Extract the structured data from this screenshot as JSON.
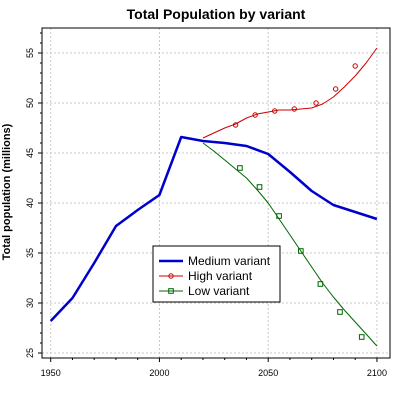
{
  "chart_data": {
    "type": "line",
    "title": "Total Population by variant",
    "xlabel": "",
    "ylabel": "Total population (millions)",
    "xlim": [
      1946,
      2106
    ],
    "ylim": [
      24.5,
      57.5
    ],
    "xticks": [
      1950,
      2000,
      2050,
      2100
    ],
    "yticks": [
      25,
      30,
      35,
      40,
      45,
      50,
      55
    ],
    "grid": true,
    "legend_position": "bottom-center",
    "series": [
      {
        "name": "Medium variant",
        "color": "#0000cc",
        "marker": "none",
        "x": [
          1950,
          1960,
          1970,
          1980,
          1990,
          2000,
          2010,
          2020,
          2030,
          2040,
          2050,
          2060,
          2070,
          2080,
          2090,
          2100
        ],
        "y": [
          28.2,
          30.5,
          34.0,
          37.7,
          39.3,
          40.8,
          46.6,
          46.2,
          46.0,
          45.7,
          44.9,
          43.1,
          41.2,
          39.8,
          39.1,
          38.4
        ]
      },
      {
        "name": "High variant",
        "color": "#cc0000",
        "marker": "circle",
        "x": [
          2020,
          2025,
          2030,
          2035,
          2040,
          2045,
          2050,
          2055,
          2060,
          2065,
          2070,
          2075,
          2080,
          2085,
          2090,
          2095,
          2100
        ],
        "y": [
          46.5,
          47.0,
          47.5,
          47.9,
          48.5,
          48.9,
          49.1,
          49.3,
          49.3,
          49.4,
          49.5,
          49.9,
          50.6,
          51.6,
          52.7,
          54.0,
          55.5
        ],
        "markers_x": [
          2035,
          2044,
          2053,
          2062,
          2072,
          2081,
          2090
        ],
        "markers_y": [
          47.8,
          48.8,
          49.2,
          49.4,
          50.0,
          51.4,
          53.7
        ]
      },
      {
        "name": "Low variant",
        "color": "#006600",
        "marker": "square",
        "x": [
          2020,
          2025,
          2030,
          2035,
          2040,
          2045,
          2050,
          2055,
          2060,
          2065,
          2070,
          2075,
          2080,
          2085,
          2090,
          2095,
          2100
        ],
        "y": [
          46.0,
          45.2,
          44.3,
          43.4,
          42.5,
          41.3,
          40.0,
          38.4,
          36.8,
          35.2,
          33.6,
          32.0,
          30.6,
          29.3,
          28.1,
          26.9,
          25.7
        ],
        "markers_x": [
          2037,
          2046,
          2055,
          2065,
          2074,
          2083,
          2093
        ],
        "markers_y": [
          43.5,
          41.6,
          38.7,
          35.2,
          31.9,
          29.1,
          26.6
        ]
      }
    ]
  }
}
